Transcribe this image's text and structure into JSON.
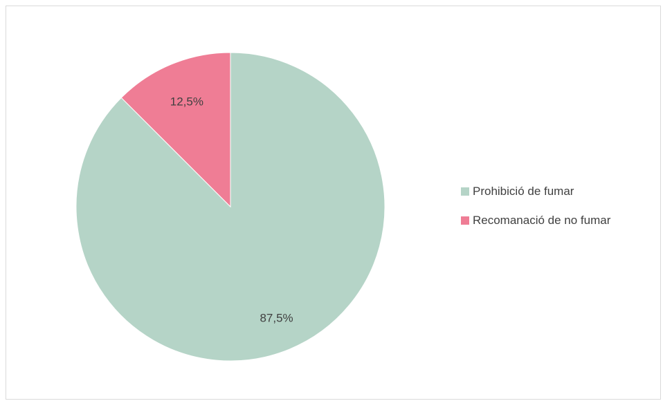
{
  "chart_data": {
    "type": "pie",
    "categories": [
      "Prohibició de fumar",
      "Recomanació de no fumar"
    ],
    "values": [
      87.5,
      12.5
    ],
    "data_labels": [
      "87,5%",
      "12,5%"
    ],
    "colors": [
      "#b5d4c7",
      "#ef7d95"
    ],
    "start_angle": "12 o'clock",
    "direction": "clockwise",
    "legend_position": "right",
    "title": ""
  }
}
